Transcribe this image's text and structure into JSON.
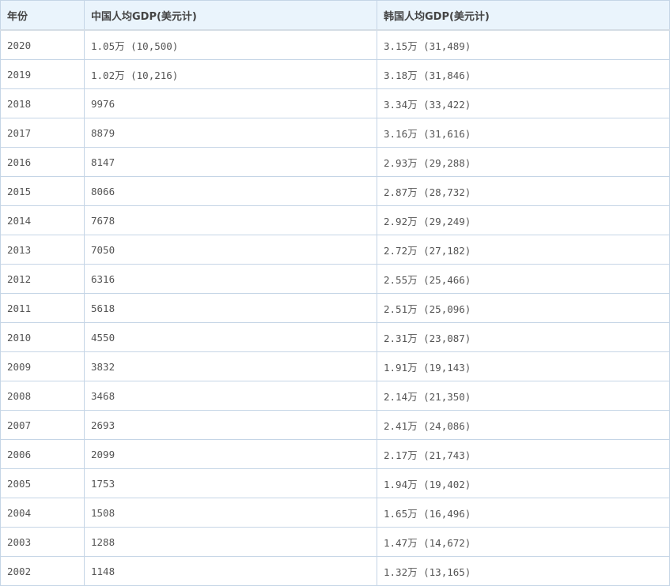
{
  "table": {
    "headers": [
      "年份",
      "中国人均GDP(美元计)",
      "韩国人均GDP(美元计)"
    ],
    "rows": [
      [
        "2020",
        "1.05万 (10,500)",
        "3.15万 (31,489)"
      ],
      [
        "2019",
        "1.02万 (10,216)",
        "3.18万 (31,846)"
      ],
      [
        "2018",
        "9976",
        "3.34万 (33,422)"
      ],
      [
        "2017",
        "8879",
        "3.16万 (31,616)"
      ],
      [
        "2016",
        "8147",
        "2.93万 (29,288)"
      ],
      [
        "2015",
        "8066",
        "2.87万 (28,732)"
      ],
      [
        "2014",
        "7678",
        "2.92万 (29,249)"
      ],
      [
        "2013",
        "7050",
        "2.72万 (27,182)"
      ],
      [
        "2012",
        "6316",
        "2.55万 (25,466)"
      ],
      [
        "2011",
        "5618",
        "2.51万 (25,096)"
      ],
      [
        "2010",
        "4550",
        "2.31万 (23,087)"
      ],
      [
        "2009",
        "3832",
        "1.91万 (19,143)"
      ],
      [
        "2008",
        "3468",
        "2.14万 (21,350)"
      ],
      [
        "2007",
        "2693",
        "2.41万 (24,086)"
      ],
      [
        "2006",
        "2099",
        "2.17万 (21,743)"
      ],
      [
        "2005",
        "1753",
        "1.94万 (19,402)"
      ],
      [
        "2004",
        "1508",
        "1.65万 (16,496)"
      ],
      [
        "2003",
        "1288",
        "1.47万 (14,672)"
      ],
      [
        "2002",
        "1148",
        "1.32万 (13,165)"
      ]
    ]
  }
}
